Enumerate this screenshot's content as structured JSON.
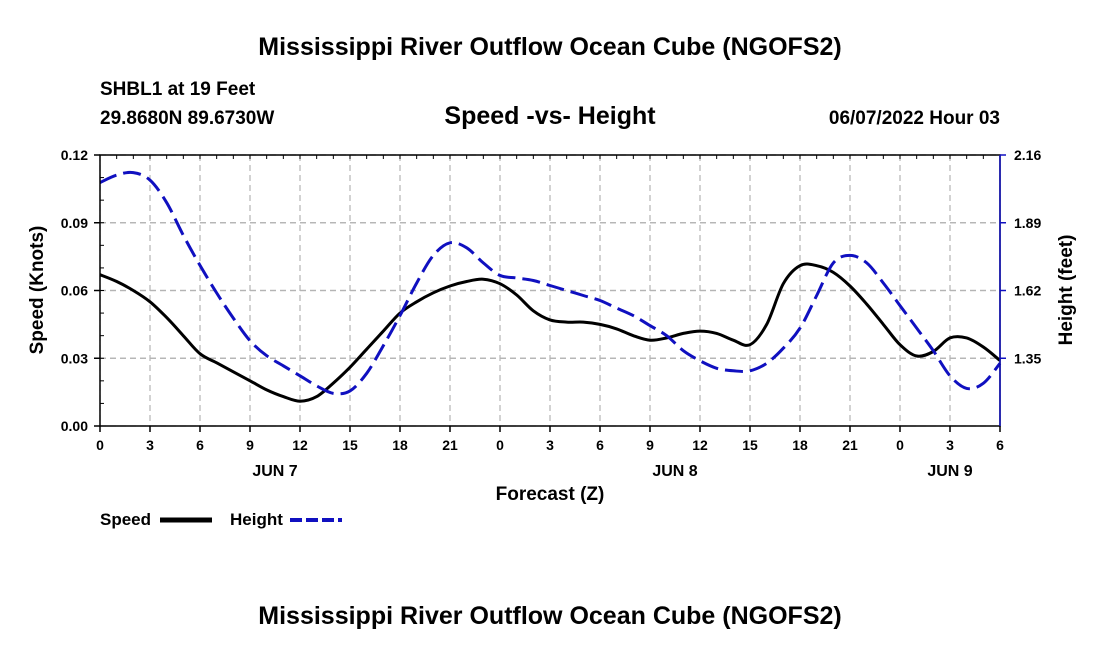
{
  "colors": {
    "speed": "#000000",
    "height": "#1010c0",
    "grid": "#b4b4b4",
    "frame": "#000000"
  },
  "chart_data": {
    "type": "line",
    "title": "Mississippi River Outflow Ocean Cube (NGOFS2)",
    "footer_title": "Mississippi River Outflow Ocean Cube (NGOFS2)",
    "station": "SHBL1 at 19 Feet",
    "location": "29.8680N  89.6730W",
    "subtitle": "Speed -vs- Height",
    "datetime": "06/07/2022 Hour 03",
    "xlabel": "Forecast (Z)",
    "ylabel_left": "Speed (Knots)",
    "ylabel_right": "Height (feet)",
    "x_unit": "hours since JUN 7 00Z",
    "xlim": [
      0,
      54
    ],
    "ylim_left": [
      0,
      0.12
    ],
    "ylim_right": [
      1.08,
      2.16
    ],
    "left_ticks": [
      {
        "v": 0,
        "label": "0.00"
      },
      {
        "v": 0.03,
        "label": "0.03"
      },
      {
        "v": 0.06,
        "label": "0.06"
      },
      {
        "v": 0.09,
        "label": "0.09"
      },
      {
        "v": 0.12,
        "label": "0.12"
      }
    ],
    "right_ticks": [
      {
        "v": 1.35,
        "label": "1.35"
      },
      {
        "v": 1.62,
        "label": "1.62"
      },
      {
        "v": 1.89,
        "label": "1.89"
      },
      {
        "v": 2.16,
        "label": "2.16"
      }
    ],
    "x_ticks": [
      {
        "v": 0,
        "label": "0"
      },
      {
        "v": 3,
        "label": "3"
      },
      {
        "v": 6,
        "label": "6"
      },
      {
        "v": 9,
        "label": "9"
      },
      {
        "v": 12,
        "label": "12"
      },
      {
        "v": 15,
        "label": "15"
      },
      {
        "v": 18,
        "label": "18"
      },
      {
        "v": 21,
        "label": "21"
      },
      {
        "v": 24,
        "label": "0"
      },
      {
        "v": 27,
        "label": "3"
      },
      {
        "v": 30,
        "label": "6"
      },
      {
        "v": 33,
        "label": "9"
      },
      {
        "v": 36,
        "label": "12"
      },
      {
        "v": 39,
        "label": "15"
      },
      {
        "v": 42,
        "label": "18"
      },
      {
        "v": 45,
        "label": "21"
      },
      {
        "v": 48,
        "label": "0"
      },
      {
        "v": 51,
        "label": "3"
      },
      {
        "v": 54,
        "label": "6"
      }
    ],
    "day_labels": [
      {
        "v": 10.5,
        "label": "JUN 7"
      },
      {
        "v": 34.5,
        "label": "JUN 8"
      },
      {
        "v": 51,
        "label": "JUN 9"
      }
    ],
    "series": [
      {
        "name": "Speed",
        "axis": "left",
        "style": "solid",
        "points": [
          [
            0,
            0.067
          ],
          [
            1,
            0.064
          ],
          [
            2,
            0.06
          ],
          [
            3,
            0.055
          ],
          [
            4,
            0.048
          ],
          [
            5,
            0.04
          ],
          [
            6,
            0.032
          ],
          [
            7,
            0.028
          ],
          [
            8,
            0.024
          ],
          [
            9,
            0.02
          ],
          [
            10,
            0.016
          ],
          [
            11,
            0.013
          ],
          [
            12,
            0.011
          ],
          [
            13,
            0.013
          ],
          [
            14,
            0.019
          ],
          [
            15,
            0.026
          ],
          [
            16,
            0.034
          ],
          [
            17,
            0.042
          ],
          [
            18,
            0.05
          ],
          [
            19,
            0.055
          ],
          [
            20,
            0.059
          ],
          [
            21,
            0.062
          ],
          [
            22,
            0.064
          ],
          [
            23,
            0.065
          ],
          [
            24,
            0.063
          ],
          [
            25,
            0.058
          ],
          [
            26,
            0.051
          ],
          [
            27,
            0.047
          ],
          [
            28,
            0.046
          ],
          [
            29,
            0.046
          ],
          [
            30,
            0.045
          ],
          [
            31,
            0.043
          ],
          [
            32,
            0.04
          ],
          [
            33,
            0.038
          ],
          [
            34,
            0.039
          ],
          [
            35,
            0.041
          ],
          [
            36,
            0.042
          ],
          [
            37,
            0.041
          ],
          [
            38,
            0.038
          ],
          [
            39,
            0.036
          ],
          [
            40,
            0.045
          ],
          [
            41,
            0.063
          ],
          [
            42,
            0.071
          ],
          [
            43,
            0.071
          ],
          [
            44,
            0.068
          ],
          [
            45,
            0.062
          ],
          [
            46,
            0.054
          ],
          [
            47,
            0.045
          ],
          [
            48,
            0.036
          ],
          [
            49,
            0.031
          ],
          [
            50,
            0.033
          ],
          [
            51,
            0.039
          ],
          [
            52,
            0.039
          ],
          [
            53,
            0.035
          ],
          [
            54,
            0.029
          ]
        ]
      },
      {
        "name": "Height",
        "axis": "right",
        "style": "dashed",
        "points": [
          [
            0,
            2.05
          ],
          [
            1,
            2.08
          ],
          [
            2,
            2.09
          ],
          [
            3,
            2.06
          ],
          [
            4,
            1.97
          ],
          [
            5,
            1.84
          ],
          [
            6,
            1.72
          ],
          [
            7,
            1.61
          ],
          [
            8,
            1.51
          ],
          [
            9,
            1.42
          ],
          [
            10,
            1.36
          ],
          [
            11,
            1.32
          ],
          [
            12,
            1.28
          ],
          [
            13,
            1.24
          ],
          [
            14,
            1.21
          ],
          [
            15,
            1.22
          ],
          [
            16,
            1.29
          ],
          [
            17,
            1.4
          ],
          [
            18,
            1.52
          ],
          [
            19,
            1.65
          ],
          [
            20,
            1.76
          ],
          [
            21,
            1.81
          ],
          [
            22,
            1.79
          ],
          [
            23,
            1.73
          ],
          [
            24,
            1.68
          ],
          [
            25,
            1.67
          ],
          [
            26,
            1.66
          ],
          [
            27,
            1.64
          ],
          [
            28,
            1.62
          ],
          [
            29,
            1.6
          ],
          [
            30,
            1.58
          ],
          [
            31,
            1.55
          ],
          [
            32,
            1.52
          ],
          [
            33,
            1.48
          ],
          [
            34,
            1.44
          ],
          [
            35,
            1.38
          ],
          [
            36,
            1.34
          ],
          [
            37,
            1.31
          ],
          [
            38,
            1.3
          ],
          [
            39,
            1.3
          ],
          [
            40,
            1.33
          ],
          [
            41,
            1.39
          ],
          [
            42,
            1.47
          ],
          [
            43,
            1.6
          ],
          [
            44,
            1.73
          ],
          [
            45,
            1.76
          ],
          [
            46,
            1.73
          ],
          [
            47,
            1.65
          ],
          [
            48,
            1.56
          ],
          [
            49,
            1.47
          ],
          [
            50,
            1.38
          ],
          [
            51,
            1.28
          ],
          [
            52,
            1.23
          ],
          [
            53,
            1.25
          ],
          [
            54,
            1.33
          ]
        ]
      }
    ],
    "legend": [
      {
        "label": "Speed",
        "style": "solid"
      },
      {
        "label": "Height",
        "style": "dashed"
      }
    ]
  }
}
